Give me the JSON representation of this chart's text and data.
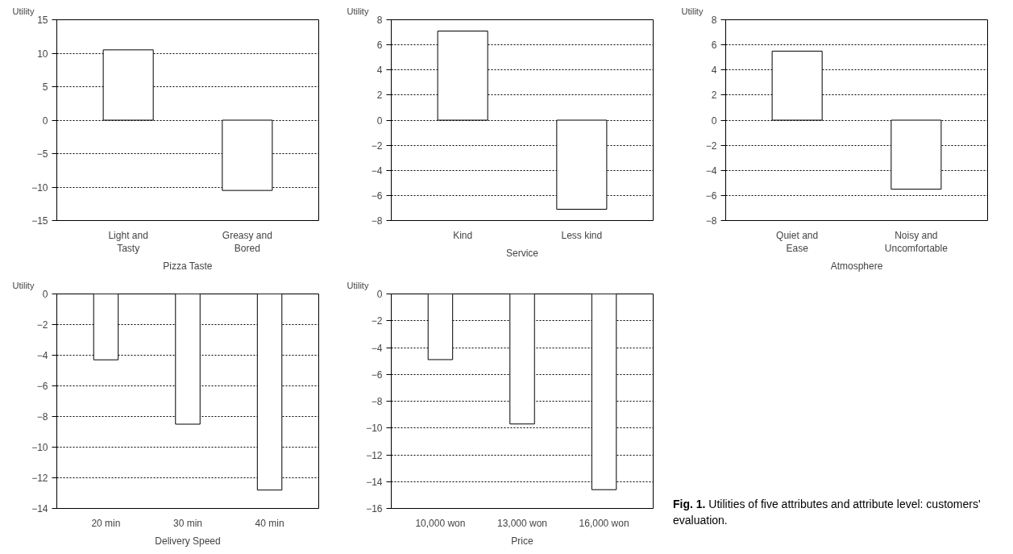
{
  "chart_data": [
    {
      "type": "bar",
      "ylabel": "Utility",
      "xlabel": "Pizza Taste",
      "categories": [
        "Light and\nTasty",
        "Greasy and\nBored"
      ],
      "values": [
        10.5,
        -10.5
      ],
      "color": "#ffffff",
      "ylim": [
        -15,
        15
      ],
      "yticks": [
        -15,
        -10,
        -5,
        0,
        5,
        10,
        15
      ],
      "grid": "y"
    },
    {
      "type": "bar",
      "ylabel": "Utility",
      "xlabel": "Service",
      "categories": [
        "Kind",
        "Less kind"
      ],
      "values": [
        7.1,
        -7.1
      ],
      "color": "#ffffff",
      "ylim": [
        -8,
        8
      ],
      "yticks": [
        -8,
        -6,
        -4,
        -2,
        0,
        2,
        4,
        6,
        8
      ],
      "grid": "y"
    },
    {
      "type": "bar",
      "ylabel": "Utility",
      "xlabel": "Atmosphere",
      "categories": [
        "Quiet and\nEase",
        "Noisy and\nUncomfortable"
      ],
      "values": [
        5.5,
        -5.5
      ],
      "color": "#ffffff",
      "ylim": [
        -8,
        8
      ],
      "yticks": [
        -8,
        -6,
        -4,
        -2,
        0,
        2,
        4,
        6,
        8
      ],
      "grid": "y"
    },
    {
      "type": "bar",
      "ylabel": "Utility",
      "xlabel": "Delivery Speed",
      "categories": [
        "20 min",
        "30 min",
        "40 min"
      ],
      "values": [
        -4.3,
        -8.5,
        -12.8
      ],
      "color": "#ffffff",
      "ylim": [
        -14,
        0
      ],
      "yticks": [
        -14,
        -12,
        -10,
        -8,
        -6,
        -4,
        -2,
        0
      ],
      "grid": "y"
    },
    {
      "type": "bar",
      "ylabel": "Utility",
      "xlabel": "Price",
      "categories": [
        "10,000 won",
        "13,000 won",
        "16,000 won"
      ],
      "values": [
        -4.9,
        -9.7,
        -14.6
      ],
      "color": "#ffffff",
      "ylim": [
        -16,
        0
      ],
      "yticks": [
        -16,
        -14,
        -12,
        -10,
        -8,
        -6,
        -4,
        -2,
        0
      ],
      "grid": "y",
      "annotations": [
        "Fig. 1. Utilities of five attributes and attribute level: customers' evaluation."
      ]
    }
  ]
}
